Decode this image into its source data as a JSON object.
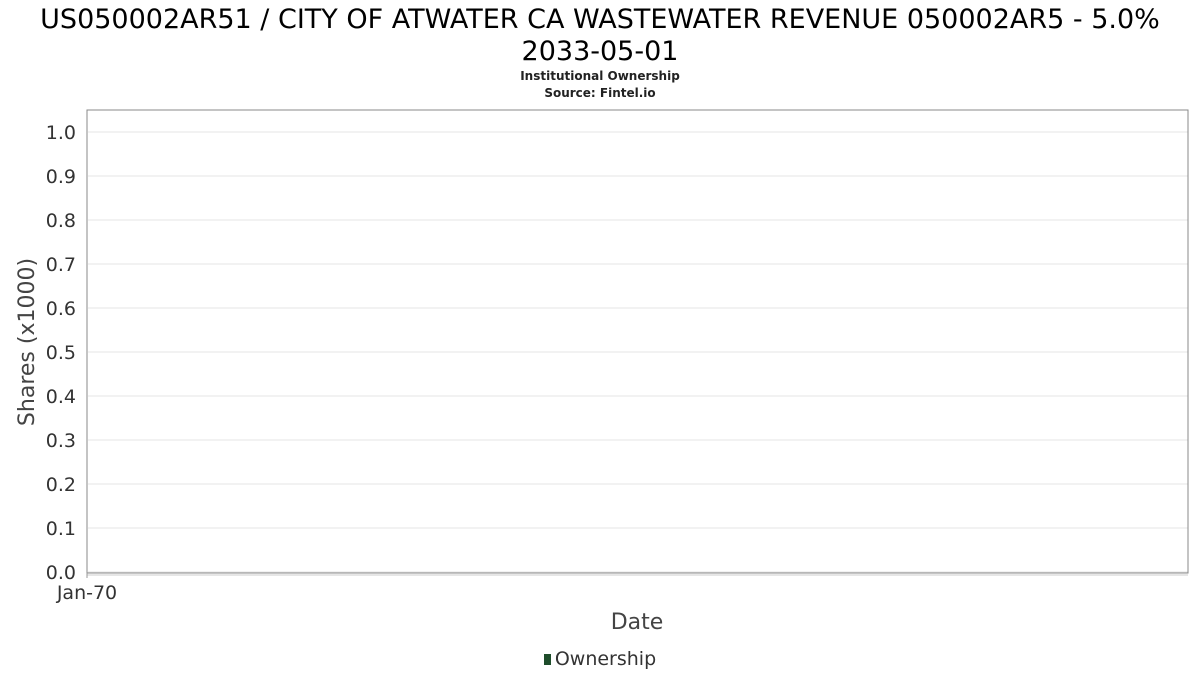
{
  "colors": {
    "ownership": "#1e4d2b",
    "grid": "#e6e6e6",
    "frame": "#888888"
  },
  "chart_data": {
    "type": "line",
    "title": "US050002AR51 / CITY OF ATWATER CA WASTEWATER REVENUE 050002AR5 - 5.0%",
    "title_line2": "2033-05-01",
    "subtitle": "Institutional Ownership",
    "source": "Source: Fintel.io",
    "xlabel": "Date",
    "ylabel": "Shares (x1000)",
    "x_ticks": [
      "Jan-70"
    ],
    "y_ticks": [
      "0.0",
      "0.1",
      "0.2",
      "0.3",
      "0.4",
      "0.5",
      "0.6",
      "0.7",
      "0.8",
      "0.9",
      "1.0"
    ],
    "ylim": [
      0,
      1.0
    ],
    "grid": true,
    "legend_position": "bottom",
    "series": [
      {
        "name": "Ownership",
        "x": [],
        "values": []
      }
    ]
  }
}
